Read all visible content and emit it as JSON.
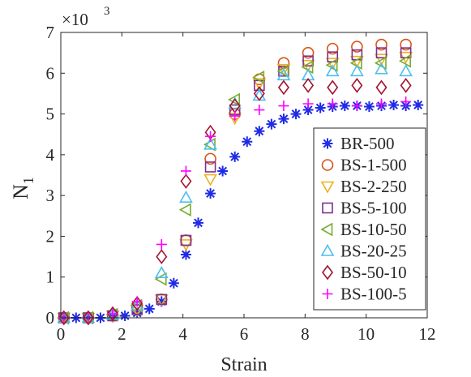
{
  "chart_data": {
    "type": "scatter",
    "xlabel": "Strain",
    "ylabel_main": "N",
    "ylabel_sub": "1",
    "yexp_base": "×10",
    "yexp_power": "3",
    "xlim": [
      0,
      12
    ],
    "ylim": [
      0,
      7
    ],
    "y_multiplier": 1000,
    "xticks": [
      0,
      2,
      4,
      6,
      8,
      10,
      12
    ],
    "yticks": [
      0,
      1,
      2,
      3,
      4,
      5,
      6,
      7
    ],
    "grid": false,
    "legend_position": "bottom-right",
    "series": [
      {
        "name": "BR-500",
        "marker": "asterisk",
        "color": "#1f2be6",
        "x": [
          0.1,
          0.5,
          0.9,
          1.3,
          1.7,
          2.1,
          2.5,
          2.9,
          3.3,
          3.7,
          4.1,
          4.5,
          4.9,
          5.3,
          5.7,
          6.1,
          6.5,
          6.9,
          7.3,
          7.7,
          8.1,
          8.5,
          8.9,
          9.3,
          9.7,
          10.1,
          10.5,
          10.9,
          11.3,
          11.7
        ],
        "y": [
          0.0,
          0.0,
          0.0,
          0.0,
          0.02,
          0.05,
          0.12,
          0.22,
          0.4,
          0.85,
          1.55,
          2.33,
          3.05,
          3.6,
          3.95,
          4.32,
          4.58,
          4.75,
          4.88,
          5.0,
          5.1,
          5.15,
          5.18,
          5.2,
          5.2,
          5.18,
          5.2,
          5.22,
          5.2,
          5.22
        ]
      },
      {
        "name": "BS-1-500",
        "marker": "circle",
        "color": "#d95319",
        "x": [
          0.1,
          0.9,
          1.7,
          2.5,
          3.3,
          4.1,
          4.9,
          5.7,
          6.5,
          7.3,
          8.1,
          8.9,
          9.7,
          10.5,
          11.3
        ],
        "y": [
          0.0,
          0.0,
          0.05,
          0.25,
          0.45,
          1.9,
          3.9,
          5.0,
          5.85,
          6.25,
          6.5,
          6.6,
          6.65,
          6.7,
          6.7
        ]
      },
      {
        "name": "BS-2-250",
        "marker": "triangle-down",
        "color": "#edb120",
        "x": [
          0.1,
          0.9,
          1.7,
          2.5,
          3.3,
          4.1,
          4.9,
          5.7,
          6.5,
          7.3,
          8.1,
          8.9,
          9.7,
          10.5,
          11.3
        ],
        "y": [
          0.0,
          0.0,
          0.05,
          0.2,
          0.45,
          1.8,
          3.4,
          4.9,
          5.75,
          6.1,
          6.2,
          6.25,
          6.3,
          6.35,
          6.4
        ]
      },
      {
        "name": "BS-5-100",
        "marker": "square",
        "color": "#7e2f8e",
        "x": [
          0.1,
          0.9,
          1.7,
          2.5,
          3.3,
          4.1,
          4.9,
          5.7,
          6.5,
          7.3,
          8.1,
          8.9,
          9.7,
          10.5,
          11.3
        ],
        "y": [
          0.0,
          0.0,
          0.05,
          0.2,
          0.45,
          1.9,
          3.7,
          5.1,
          5.7,
          6.05,
          6.3,
          6.4,
          6.45,
          6.5,
          6.5
        ]
      },
      {
        "name": "BS-10-50",
        "marker": "triangle-left",
        "color": "#77ac30",
        "x": [
          0.1,
          0.9,
          1.7,
          2.5,
          3.3,
          4.1,
          4.9,
          5.7,
          6.5,
          7.3,
          8.1,
          8.9,
          9.7,
          10.5,
          11.3
        ],
        "y": [
          0.0,
          0.0,
          0.08,
          0.3,
          0.95,
          2.65,
          4.25,
          5.35,
          5.9,
          6.05,
          6.15,
          6.2,
          6.25,
          6.25,
          6.3
        ]
      },
      {
        "name": "BS-20-25",
        "marker": "triangle-up",
        "color": "#4dbeee",
        "x": [
          0.1,
          0.9,
          1.7,
          2.5,
          3.3,
          4.1,
          4.9,
          5.7,
          6.5,
          7.3,
          8.1,
          8.9,
          9.7,
          10.5,
          11.3
        ],
        "y": [
          0.0,
          0.0,
          0.08,
          0.3,
          1.1,
          2.95,
          4.25,
          5.25,
          5.45,
          5.95,
          5.95,
          6.05,
          6.05,
          6.1,
          6.05
        ]
      },
      {
        "name": "BS-50-10",
        "marker": "diamond",
        "color": "#a2142f",
        "x": [
          0.1,
          0.9,
          1.7,
          2.5,
          3.3,
          4.1,
          4.9,
          5.7,
          6.5,
          7.3,
          8.1,
          8.9,
          9.7,
          10.5,
          11.3
        ],
        "y": [
          0.0,
          0.0,
          0.1,
          0.35,
          1.5,
          3.35,
          4.55,
          5.2,
          5.5,
          5.65,
          5.7,
          5.65,
          5.7,
          5.65,
          5.7
        ]
      },
      {
        "name": "BS-100-5",
        "marker": "plus",
        "color": "#ff00ff",
        "x": [
          0.1,
          0.9,
          1.7,
          2.5,
          3.3,
          4.1,
          4.9,
          5.7,
          6.5,
          7.3,
          8.1,
          8.9,
          9.7,
          10.5,
          11.3
        ],
        "y": [
          0.0,
          0.0,
          0.1,
          0.4,
          1.8,
          3.6,
          4.45,
          4.95,
          5.1,
          5.2,
          5.25,
          5.25,
          5.2,
          5.25,
          5.3
        ]
      }
    ]
  }
}
